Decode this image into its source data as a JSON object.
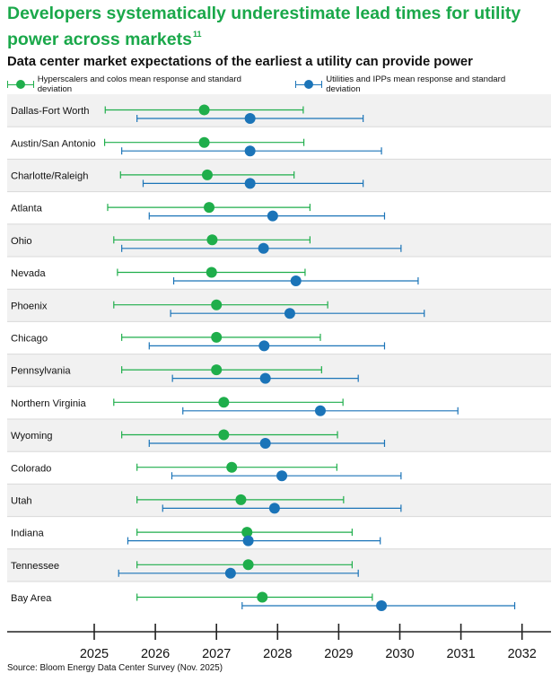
{
  "title": "Developers systematically underestimate lead times for utility power across markets",
  "title_footnote": "11",
  "subtitle": "Data center market expectations of the earliest a utility can provide power",
  "source": "Source: Bloom Energy Data Center Survey (Nov. 2025)",
  "colors": {
    "green": "#1fae4b",
    "blue": "#1b74b8",
    "title_green": "#1aa84a",
    "band": "#f1f1f1",
    "divider": "#d9d9d9",
    "axis": "#222222"
  },
  "chart_data": {
    "type": "errorbar",
    "title": "Data center market expectations of the earliest a utility can provide power",
    "xlim": [
      2025,
      2032
    ],
    "x_ticks": [
      "2025",
      "2026",
      "2027",
      "2028",
      "2029",
      "2030",
      "2031",
      "2032"
    ],
    "legend_position": "top-left",
    "series": [
      {
        "name": "Hyperscalers and colos mean response and standard deviation",
        "color": "#1fae4b"
      },
      {
        "name": "Utilities and IPPs mean response and standard deviation",
        "color": "#1b74b8"
      }
    ],
    "markets": [
      {
        "name": "Dallas-Fort Worth",
        "hyperscalers": {
          "mean": 2026.8,
          "low": 2025.18,
          "high": 2028.42
        },
        "utilities": {
          "mean": 2027.55,
          "low": 2025.7,
          "high": 2029.4
        }
      },
      {
        "name": "Austin/San Antonio",
        "hyperscalers": {
          "mean": 2026.8,
          "low": 2025.17,
          "high": 2028.43
        },
        "utilities": {
          "mean": 2027.55,
          "low": 2025.45,
          "high": 2029.7
        }
      },
      {
        "name": "Charlotte/Raleigh",
        "hyperscalers": {
          "mean": 2026.85,
          "low": 2025.43,
          "high": 2028.27
        },
        "utilities": {
          "mean": 2027.55,
          "low": 2025.8,
          "high": 2029.4
        }
      },
      {
        "name": "Atlanta",
        "hyperscalers": {
          "mean": 2026.88,
          "low": 2025.22,
          "high": 2028.53
        },
        "utilities": {
          "mean": 2027.92,
          "low": 2025.9,
          "high": 2029.75
        }
      },
      {
        "name": "Ohio",
        "hyperscalers": {
          "mean": 2026.93,
          "low": 2025.32,
          "high": 2028.53
        },
        "utilities": {
          "mean": 2027.77,
          "low": 2025.45,
          "high": 2030.02
        }
      },
      {
        "name": "Nevada",
        "hyperscalers": {
          "mean": 2026.92,
          "low": 2025.38,
          "high": 2028.45
        },
        "utilities": {
          "mean": 2028.3,
          "low": 2026.3,
          "high": 2030.3
        }
      },
      {
        "name": "Phoenix",
        "hyperscalers": {
          "mean": 2027.0,
          "low": 2025.32,
          "high": 2028.82
        },
        "utilities": {
          "mean": 2028.2,
          "low": 2026.25,
          "high": 2030.4
        }
      },
      {
        "name": "Chicago",
        "hyperscalers": {
          "mean": 2027.0,
          "low": 2025.45,
          "high": 2028.7
        },
        "utilities": {
          "mean": 2027.78,
          "low": 2025.9,
          "high": 2029.75
        }
      },
      {
        "name": "Pennsylvania",
        "hyperscalers": {
          "mean": 2027.0,
          "low": 2025.45,
          "high": 2028.72
        },
        "utilities": {
          "mean": 2027.8,
          "low": 2026.28,
          "high": 2029.32
        }
      },
      {
        "name": "Northern Virginia",
        "hyperscalers": {
          "mean": 2027.12,
          "low": 2025.32,
          "high": 2029.07
        },
        "utilities": {
          "mean": 2028.7,
          "low": 2026.45,
          "high": 2030.95
        }
      },
      {
        "name": "Wyoming",
        "hyperscalers": {
          "mean": 2027.12,
          "low": 2025.45,
          "high": 2028.98
        },
        "utilities": {
          "mean": 2027.8,
          "low": 2025.9,
          "high": 2029.75
        }
      },
      {
        "name": "Colorado",
        "hyperscalers": {
          "mean": 2027.25,
          "low": 2025.7,
          "high": 2028.97
        },
        "utilities": {
          "mean": 2028.07,
          "low": 2026.27,
          "high": 2030.02
        }
      },
      {
        "name": "Utah",
        "hyperscalers": {
          "mean": 2027.4,
          "low": 2025.7,
          "high": 2029.08
        },
        "utilities": {
          "mean": 2027.95,
          "low": 2026.12,
          "high": 2030.02
        }
      },
      {
        "name": "Indiana",
        "hyperscalers": {
          "mean": 2027.5,
          "low": 2025.7,
          "high": 2029.22
        },
        "utilities": {
          "mean": 2027.52,
          "low": 2025.55,
          "high": 2029.68
        }
      },
      {
        "name": "Tennessee",
        "hyperscalers": {
          "mean": 2027.52,
          "low": 2025.7,
          "high": 2029.22
        },
        "utilities": {
          "mean": 2027.23,
          "low": 2025.4,
          "high": 2029.32
        }
      },
      {
        "name": "Bay Area",
        "hyperscalers": {
          "mean": 2027.75,
          "low": 2025.7,
          "high": 2029.55
        },
        "utilities": {
          "mean": 2029.7,
          "low": 2027.42,
          "high": 2031.88
        }
      }
    ]
  }
}
